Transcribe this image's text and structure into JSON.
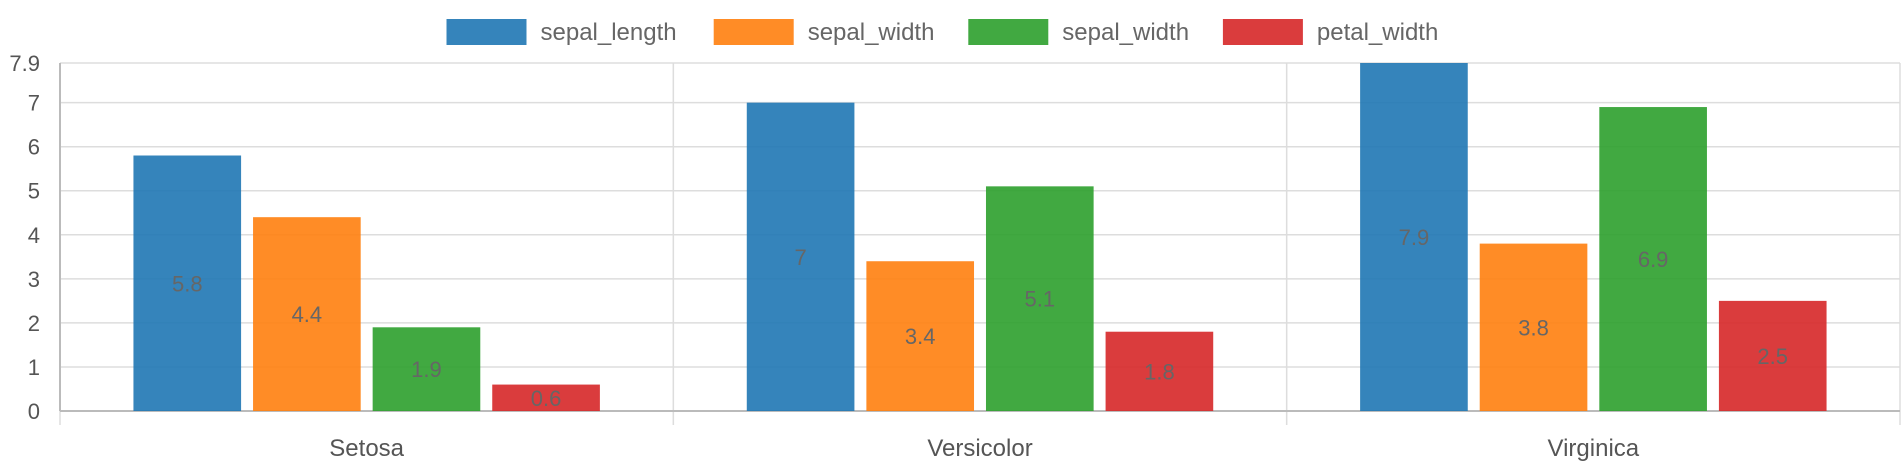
{
  "chart_data": {
    "type": "bar",
    "title": "",
    "xlabel": "",
    "ylabel": "",
    "categories": [
      "Setosa",
      "Versicolor",
      "Virginica"
    ],
    "series": [
      {
        "name": "sepal_length",
        "color": "#1f77b4",
        "values": [
          5.8,
          7,
          7.9
        ]
      },
      {
        "name": "sepal_width",
        "color": "#ff7f0e",
        "values": [
          4.4,
          3.4,
          3.8
        ]
      },
      {
        "name": "sepal_width",
        "color": "#2ca02c",
        "values": [
          1.9,
          5.1,
          6.9
        ]
      },
      {
        "name": "petal_width",
        "color": "#d62728",
        "values": [
          0.6,
          1.8,
          2.5
        ]
      }
    ],
    "yticks": [
      "0",
      "1",
      "2",
      "3",
      "4",
      "5",
      "6",
      "7",
      "7.9"
    ],
    "ylim": [
      0,
      7.9
    ],
    "grid": true,
    "legend_position": "top-center",
    "data_labels": true
  }
}
